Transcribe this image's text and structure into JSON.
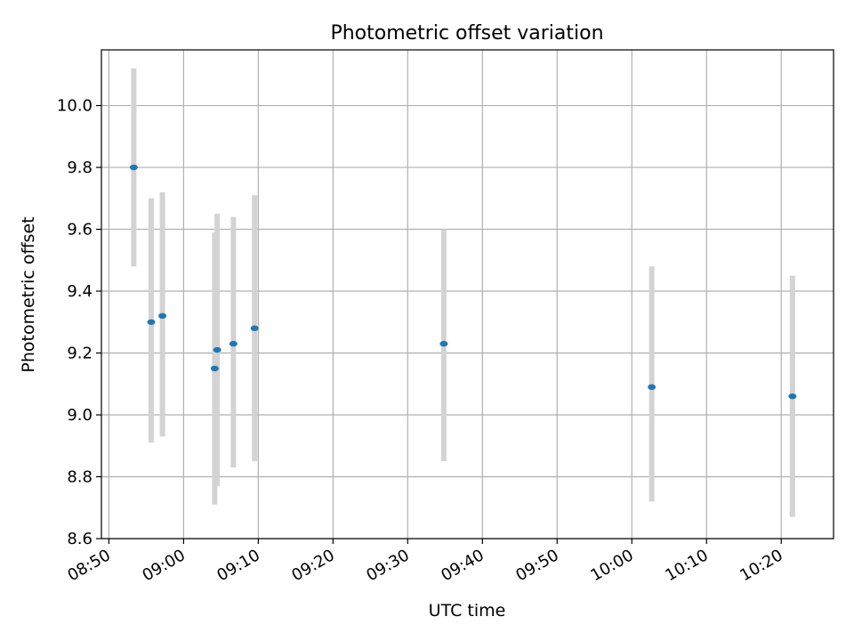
{
  "chart_data": {
    "type": "scatter",
    "title": "Photometric offset variation",
    "xlabel": "UTC time",
    "ylabel": "Photometric offset",
    "x_axis_kind": "time",
    "x_ticks": [
      "08:50",
      "09:00",
      "09:10",
      "09:20",
      "09:30",
      "09:40",
      "09:50",
      "10:00",
      "10:10",
      "10:20"
    ],
    "xlim": [
      "08:49",
      "10:27"
    ],
    "y_ticks": [
      "8.6",
      "8.8",
      "9.0",
      "9.2",
      "9.4",
      "9.6",
      "9.8",
      "10.0"
    ],
    "ylim": [
      8.6,
      10.18
    ],
    "grid": true,
    "marker_color": "#1f77b4",
    "errorbar_color": "#d3d3d3",
    "points": [
      {
        "time": "08:53:20",
        "y": 9.8,
        "err_low": 9.48,
        "err_high": 10.12
      },
      {
        "time": "08:55:40",
        "y": 9.3,
        "err_low": 8.91,
        "err_high": 9.7
      },
      {
        "time": "08:57:10",
        "y": 9.32,
        "err_low": 8.93,
        "err_high": 9.72
      },
      {
        "time": "09:04:10",
        "y": 9.15,
        "err_low": 8.71,
        "err_high": 9.59
      },
      {
        "time": "09:04:30",
        "y": 9.21,
        "err_low": 8.77,
        "err_high": 9.65
      },
      {
        "time": "09:06:40",
        "y": 9.23,
        "err_low": 8.83,
        "err_high": 9.64
      },
      {
        "time": "09:09:30",
        "y": 9.28,
        "err_low": 8.85,
        "err_high": 9.71
      },
      {
        "time": "09:34:50",
        "y": 9.23,
        "err_low": 8.85,
        "err_high": 9.6
      },
      {
        "time": "10:02:40",
        "y": 9.09,
        "err_low": 8.72,
        "err_high": 9.48
      },
      {
        "time": "10:21:30",
        "y": 9.06,
        "err_low": 8.67,
        "err_high": 9.45
      }
    ]
  }
}
